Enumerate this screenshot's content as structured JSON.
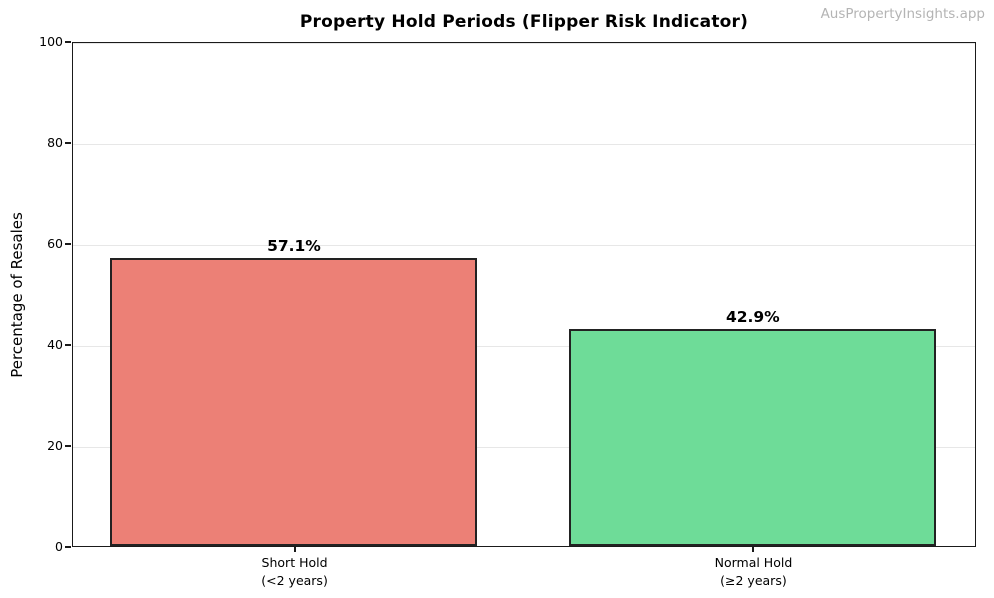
{
  "watermark": "AusPropertyInsights.app",
  "chart_data": {
    "type": "bar",
    "title": "Property Hold Periods (Flipper Risk Indicator)",
    "categories": [
      "Short Hold\n(<2 years)",
      "Normal Hold\n(≥2 years)"
    ],
    "values": [
      57.1,
      42.9
    ],
    "bar_labels": [
      "57.1%",
      "42.9%"
    ],
    "bar_colors": [
      "#ec8076",
      "#6edc98"
    ],
    "bar_edge_color": "#222222",
    "xlabel": "",
    "ylabel": "Percentage of Resales",
    "ylim": [
      0,
      100
    ],
    "yticks": [
      0,
      20,
      40,
      60,
      80,
      100
    ],
    "xlim": [
      -0.485,
      1.485
    ],
    "bar_width": 0.8,
    "grid": "horizontal",
    "grid_color": "#e7e7e7",
    "legend": "none"
  }
}
